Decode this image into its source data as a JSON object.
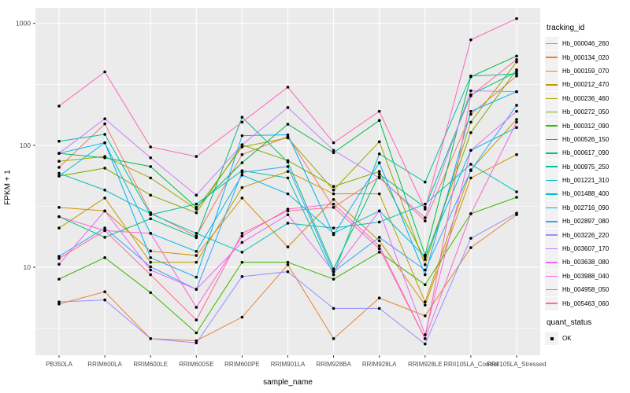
{
  "chart_data": {
    "type": "line",
    "title": "",
    "xlabel": "sample_name",
    "ylabel": "FPKM + 1",
    "y_scale": "log10",
    "y_ticks": [
      10,
      100,
      1000
    ],
    "y_minor_gridlines": [
      3.162,
      31.62,
      316.2
    ],
    "ylim": [
      1.9,
      1340
    ],
    "grid": "white major+minor on gray panel",
    "legend_position": "right",
    "point_marker": "black dot on every value",
    "categories": [
      "PB350LA",
      "RRIM600LA",
      "RRIM600LE",
      "RRIM600SE",
      "RRIM600PE",
      "RRIM901LA",
      "RRIM928BA",
      "RRIM928LA",
      "RRIM928LE",
      "RRII105LA_Control",
      "RRII105LA_Stressed"
    ],
    "legend": {
      "title": "tracking_id"
    },
    "quant_legend": {
      "title": "quant_status",
      "items": [
        {
          "label": "OK",
          "marker": "black-square"
        }
      ]
    },
    "series": [
      {
        "name": "Hb_000046_260",
        "color": "#F8766D",
        "values": [
          66,
          150,
          28,
          18,
          84,
          118,
          31,
          55,
          24,
          180,
          370
        ]
      },
      {
        "name": "Hb_000134_020",
        "color": "#EA8331",
        "values": [
          5.0,
          6.3,
          2.6,
          2.5,
          3.9,
          10.5,
          2.6,
          5.6,
          4.0,
          14.5,
          27
        ]
      },
      {
        "name": "Hb_000159_070",
        "color": "#D89000",
        "values": [
          31,
          29,
          13.6,
          12.5,
          37,
          14.7,
          36,
          16.5,
          4.9,
          54,
          84
        ]
      },
      {
        "name": "Hb_000212_470",
        "color": "#C09B00",
        "values": [
          21,
          37,
          11,
          11,
          45,
          61,
          40,
          40,
          5.2,
          63,
          163
        ]
      },
      {
        "name": "Hb_000236_460",
        "color": "#A3A500",
        "values": [
          74,
          81,
          54,
          30,
          97,
          115,
          43,
          107,
          10.5,
          155,
          483
        ]
      },
      {
        "name": "Hb_000272_050",
        "color": "#7CAE00",
        "values": [
          56,
          65,
          39,
          28,
          101,
          75,
          46,
          61,
          11.6,
          127,
          416
        ]
      },
      {
        "name": "Hb_000312_090",
        "color": "#39B600",
        "values": [
          8.0,
          12,
          6.2,
          2.9,
          11,
          11,
          8.0,
          13.3,
          7.2,
          27.5,
          37.5
        ]
      },
      {
        "name": "Hb_000526_150",
        "color": "#00BB4E",
        "values": [
          86,
          79,
          67,
          31,
          72,
          149,
          87,
          160,
          12.6,
          365,
          540
        ]
      },
      {
        "name": "Hb_000617_090",
        "color": "#00BF7D",
        "values": [
          26,
          17.6,
          25,
          17.5,
          170,
          73,
          9.7,
          58,
          31,
          260,
          400
        ]
      },
      {
        "name": "Hb_000975_250",
        "color": "#00C1A3",
        "values": [
          108,
          123,
          27,
          33,
          62,
          54,
          8.7,
          85,
          50,
          370,
          385
        ]
      },
      {
        "name": "Hb_001221_310",
        "color": "#00BFC4",
        "values": [
          59,
          43,
          27.5,
          19,
          13.3,
          23,
          21,
          23.5,
          33,
          70,
          41.6
        ]
      },
      {
        "name": "Hb_001488_400",
        "color": "#00BAE0",
        "values": [
          56,
          105,
          19,
          13.5,
          57,
          40,
          19,
          29,
          12.2,
          91,
          140
        ]
      },
      {
        "name": "Hb_002716_090",
        "color": "#00B0F6",
        "values": [
          86,
          105,
          12,
          8.3,
          120,
          122,
          18.5,
          72,
          8.7,
          190,
          275
        ]
      },
      {
        "name": "Hb_002897_080",
        "color": "#35A2FF",
        "values": [
          12.3,
          21,
          10.1,
          6.6,
          60,
          67,
          9.2,
          17.6,
          9.5,
          62,
          213
        ]
      },
      {
        "name": "Hb_003226_220",
        "color": "#9590FF",
        "values": [
          5.2,
          5.4,
          2.6,
          2.4,
          8.4,
          9.2,
          4.6,
          4.6,
          2.35,
          17.3,
          27.8
        ]
      },
      {
        "name": "Hb_003607_170",
        "color": "#C77CFF",
        "values": [
          86,
          165,
          79,
          39,
          101,
          204,
          91,
          54,
          25.5,
          280,
          275
        ]
      },
      {
        "name": "Hb_003638_080",
        "color": "#E76BF3",
        "values": [
          10.6,
          29,
          9.5,
          6.6,
          16,
          27,
          9.2,
          29,
          2.8,
          91,
          190
        ]
      },
      {
        "name": "Hb_003988_040",
        "color": "#FA62DB",
        "values": [
          26,
          20,
          19,
          4.7,
          18,
          30,
          33,
          15,
          2.6,
          27.5,
          155
        ]
      },
      {
        "name": "Hb_004958_050",
        "color": "#FF62BC",
        "values": [
          210,
          400,
          97,
          81,
          155,
          300,
          105,
          190,
          30,
          733,
          1094
        ]
      },
      {
        "name": "Hb_005463_060",
        "color": "#FF6A98",
        "values": [
          11.8,
          20,
          8.7,
          3.7,
          19,
          29,
          31,
          14.2,
          2.6,
          255,
          505
        ]
      }
    ]
  },
  "colors": {
    "panel_bg": "#EBEBEB",
    "gridline": "#FFFFFF",
    "axis_text": "#4D4D4D",
    "tick_mark": "#333333",
    "point": "#000000",
    "legend_key_bg": "#F2F2F2"
  }
}
